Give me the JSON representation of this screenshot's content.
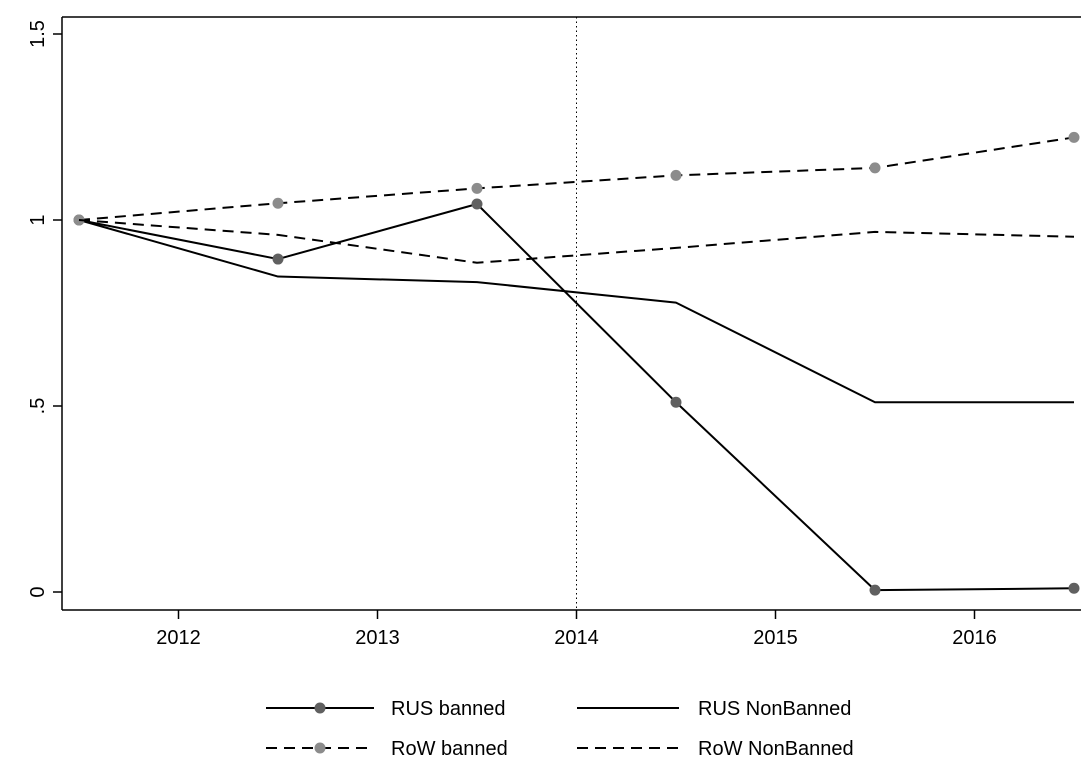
{
  "chart_data": {
    "type": "line",
    "title": "",
    "xlabel": "",
    "ylabel": "",
    "x": [
      2011.5,
      2012.5,
      2013.5,
      2014.5,
      2015.5,
      2016.5
    ],
    "xlim": [
      2011.5,
      2016.5
    ],
    "ylim": [
      -0.05,
      1.5
    ],
    "x_ticks": [
      {
        "value": 2012,
        "label": "2012"
      },
      {
        "value": 2013,
        "label": "2013"
      },
      {
        "value": 2014,
        "label": "2014"
      },
      {
        "value": 2015,
        "label": "2015"
      },
      {
        "value": 2016,
        "label": "2016"
      }
    ],
    "y_ticks": [
      {
        "value": 0,
        "label": "0"
      },
      {
        "value": 0.5,
        "label": ".5"
      },
      {
        "value": 1,
        "label": "1"
      },
      {
        "value": 1.5,
        "label": "1.5"
      }
    ],
    "reference_line": {
      "x": 2014,
      "style": "dotted"
    },
    "grid": false,
    "legend_position": "bottom",
    "series": [
      {
        "name": "RUS banned",
        "values": [
          1.0,
          0.895,
          1.043,
          0.51,
          0.005,
          0.01
        ],
        "line": "solid",
        "markers": true,
        "marker_color": "#606060",
        "line_color": "#000000"
      },
      {
        "name": "RUS NonBanned",
        "values": [
          1.0,
          0.848,
          0.833,
          0.778,
          0.51,
          0.51
        ],
        "line": "solid",
        "markers": false,
        "line_color": "#000000"
      },
      {
        "name": "RoW banned",
        "values": [
          1.0,
          1.045,
          1.085,
          1.12,
          1.14,
          1.222
        ],
        "line": "dashed",
        "markers": true,
        "marker_color": "#8c8c8c",
        "line_color": "#000000"
      },
      {
        "name": "RoW NonBanned",
        "values": [
          1.0,
          0.96,
          0.885,
          0.925,
          0.968,
          0.955
        ],
        "line": "dashed",
        "markers": false,
        "line_color": "#000000"
      }
    ]
  }
}
